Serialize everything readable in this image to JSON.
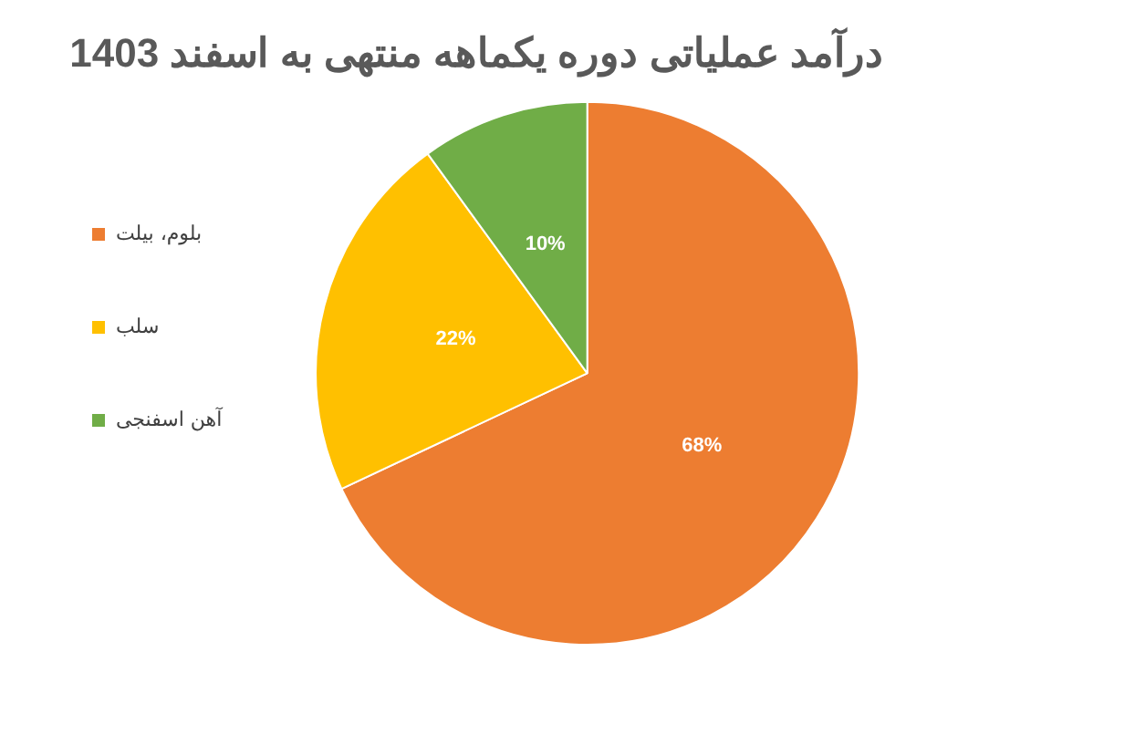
{
  "chart_data": {
    "type": "pie",
    "title": "درآمد عملیاتی دوره یکماهه منتهی به اسفند 1403",
    "categories": [
      "بلوم، بیلت",
      "سلب",
      "آهن اسفنجی"
    ],
    "values": [
      68,
      22,
      10
    ],
    "colors": [
      "#ed7d31",
      "#ffc000",
      "#70ad47"
    ],
    "value_labels": [
      "68%",
      "22%",
      "10%"
    ],
    "legend": "left"
  }
}
